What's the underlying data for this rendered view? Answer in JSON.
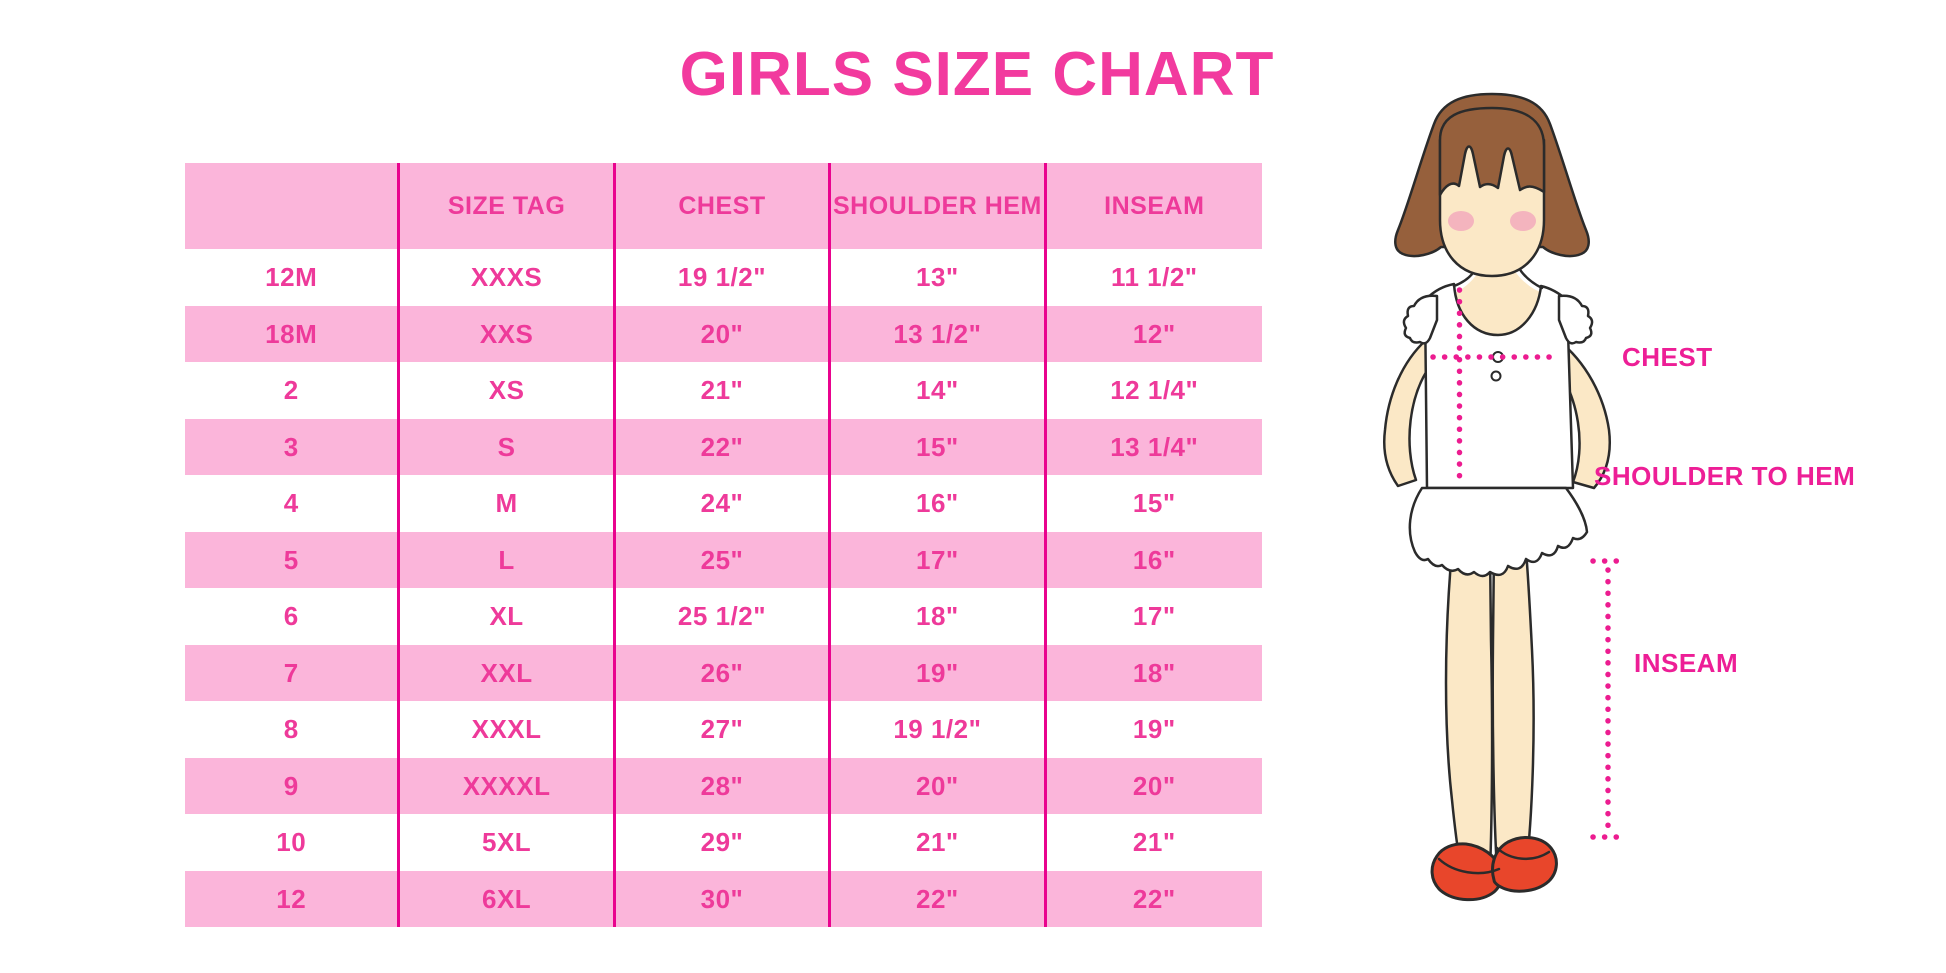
{
  "title": "GIRLS SIZE CHART",
  "figure_labels": {
    "chest": "CHEST",
    "shoulder_to_hem": "SHOULDER TO HEM",
    "inseam": "INSEAM"
  },
  "colors": {
    "title_pink": "#F23A9E",
    "table_text_pink": "#EE3A9A",
    "row_pink": "#FBB5DA",
    "divider_magenta": "#E9038E",
    "label_magenta": "#ED1E96",
    "dotted_line_magenta": "#EC1C90",
    "hair_brown": "#96603C",
    "skin": "#FBE8C6",
    "blush": "#F3A6BB",
    "shoe_red": "#E8462B"
  },
  "chart_data": {
    "type": "table",
    "title": "GIRLS SIZE CHART",
    "columns": [
      "",
      "SIZE TAG",
      "CHEST",
      "SHOULDER HEM",
      "INSEAM"
    ],
    "rows": [
      [
        "12M",
        "XXXS",
        "19 1/2\"",
        "13\"",
        "11 1/2\""
      ],
      [
        "18M",
        "XXS",
        "20\"",
        "13 1/2\"",
        "12\""
      ],
      [
        "2",
        "XS",
        "21\"",
        "14\"",
        "12 1/4\""
      ],
      [
        "3",
        "S",
        "22\"",
        "15\"",
        "13 1/4\""
      ],
      [
        "4",
        "M",
        "24\"",
        "16\"",
        "15\""
      ],
      [
        "5",
        "L",
        "25\"",
        "17\"",
        "16\""
      ],
      [
        "6",
        "XL",
        "25 1/2\"",
        "18\"",
        "17\""
      ],
      [
        "7",
        "XXL",
        "26\"",
        "19\"",
        "18\""
      ],
      [
        "8",
        "XXXL",
        "27\"",
        "19 1/2\"",
        "19\""
      ],
      [
        "9",
        "XXXXL",
        "28\"",
        "20\"",
        "20\""
      ],
      [
        "10",
        "5XL",
        "29\"",
        "21\"",
        "21\""
      ],
      [
        "12",
        "6XL",
        "30\"",
        "22\"",
        "22\""
      ]
    ]
  }
}
